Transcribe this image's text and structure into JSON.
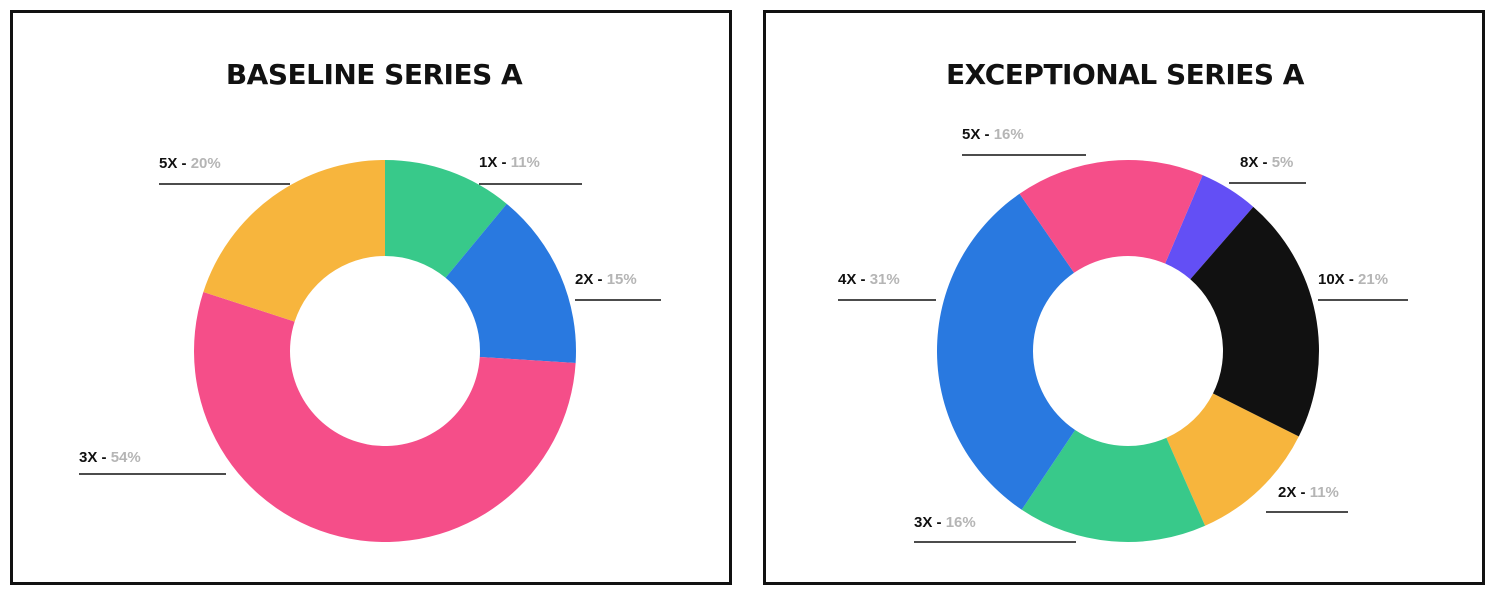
{
  "chart_data": [
    {
      "type": "pie",
      "variant": "donut",
      "title": "BASELINE SERIES A",
      "slices": [
        {
          "label": "1X",
          "value": 11,
          "display": "11%",
          "color": "#38c98a"
        },
        {
          "label": "2X",
          "value": 15,
          "display": "15%",
          "color": "#2979e0"
        },
        {
          "label": "3X",
          "value": 54,
          "display": "54%",
          "color": "#f54e89"
        },
        {
          "label": "5X",
          "value": 20,
          "display": "20%",
          "color": "#f7b53d"
        }
      ]
    },
    {
      "type": "pie",
      "variant": "donut",
      "title": "EXCEPTIONAL SERIES A",
      "slices": [
        {
          "label": "8X",
          "value": 5,
          "display": "5%",
          "color": "#634ff5"
        },
        {
          "label": "10X",
          "value": 21,
          "display": "21%",
          "color": "#111111"
        },
        {
          "label": "2X",
          "value": 11,
          "display": "11%",
          "color": "#f7b53d"
        },
        {
          "label": "3X",
          "value": 16,
          "display": "16%",
          "color": "#38c98a"
        },
        {
          "label": "4X",
          "value": 31,
          "display": "31%",
          "color": "#2979e0"
        },
        {
          "label": "5X",
          "value": 16,
          "display": "16%",
          "color": "#f54e89"
        }
      ]
    }
  ],
  "label_separator": " - "
}
